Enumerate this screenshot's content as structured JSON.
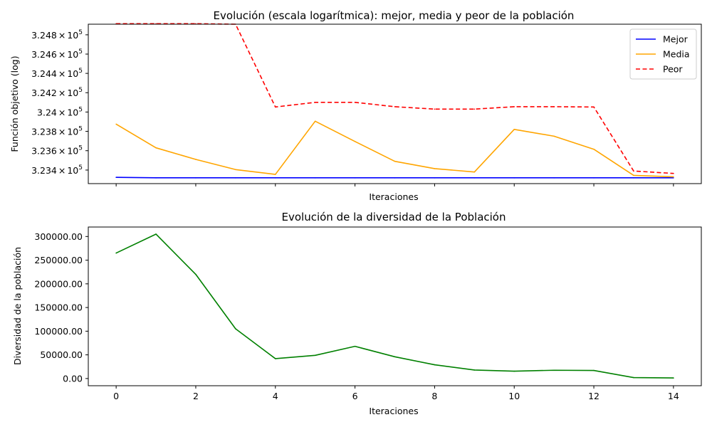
{
  "chart_data": [
    {
      "type": "line",
      "title": "Evolución (escala logarítmica): mejor, media y peor de la población",
      "xlabel": "Iteraciones",
      "ylabel": "Función objetivo (log)",
      "yscale": "log",
      "x": [
        0,
        1,
        2,
        3,
        4,
        5,
        6,
        7,
        8,
        9,
        10,
        11,
        12,
        13,
        14
      ],
      "xlim": [
        -0.7,
        14.7
      ],
      "ylim": [
        323260,
        324910
      ],
      "xticks": [
        0,
        2,
        4,
        6,
        8,
        10,
        12,
        14
      ],
      "xtick_labels_visible": false,
      "yticks": [
        {
          "value": 323400,
          "mantissa": "3.234",
          "exponent": "5"
        },
        {
          "value": 323600,
          "mantissa": "3.236",
          "exponent": "5"
        },
        {
          "value": 323800,
          "mantissa": "3.238",
          "exponent": "5"
        },
        {
          "value": 324000,
          "mantissa": "3.24",
          "exponent": "5"
        },
        {
          "value": 324200,
          "mantissa": "3.242",
          "exponent": "5"
        },
        {
          "value": 324400,
          "mantissa": "3.244",
          "exponent": "5"
        },
        {
          "value": 324600,
          "mantissa": "3.246",
          "exponent": "5"
        },
        {
          "value": 324800,
          "mantissa": "3.248",
          "exponent": "5"
        }
      ],
      "ytick_base": "10",
      "ytick_multiplier": "×",
      "grid": false,
      "legend": "top-right",
      "series": [
        {
          "name": "Mejor",
          "color": "#0000ff",
          "style": "solid",
          "values": [
            323325,
            323320,
            323320,
            323320,
            323320,
            323320,
            323320,
            323320,
            323320,
            323320,
            323320,
            323320,
            323320,
            323320,
            323320
          ]
        },
        {
          "name": "Media",
          "color": "#ffa500",
          "style": "solid",
          "values": [
            323875,
            323630,
            323510,
            323405,
            323355,
            323905,
            323695,
            323490,
            323415,
            323380,
            323820,
            323750,
            323615,
            323345,
            323330
          ]
        },
        {
          "name": "Peor",
          "color": "#ff0000",
          "style": "dashed",
          "values": [
            324915,
            324915,
            324915,
            324910,
            324052,
            324100,
            324100,
            324055,
            324030,
            324030,
            324055,
            324055,
            324052,
            323390,
            323365
          ]
        }
      ]
    },
    {
      "type": "line",
      "title": "Evolución de la diversidad de la Población",
      "xlabel": "Iteraciones",
      "ylabel": "Diversidad de la población",
      "x": [
        0,
        1,
        2,
        3,
        4,
        5,
        6,
        7,
        8,
        9,
        10,
        11,
        12,
        13,
        14
      ],
      "xlim": [
        -0.7,
        14.7
      ],
      "ylim": [
        -15200,
        320000
      ],
      "xticks": [
        0,
        2,
        4,
        6,
        8,
        10,
        12,
        14
      ],
      "xtick_labels": [
        "0",
        "2",
        "4",
        "6",
        "8",
        "10",
        "12",
        "14"
      ],
      "yticks": [
        0,
        50000,
        100000,
        150000,
        200000,
        250000,
        300000
      ],
      "ytick_labels": [
        "0.00",
        "50000.00",
        "100000.00",
        "150000.00",
        "200000.00",
        "250000.00",
        "300000.00"
      ],
      "grid": false,
      "series": [
        {
          "color": "#008000",
          "style": "solid",
          "values": [
            265000,
            305000,
            220000,
            105000,
            42000,
            49000,
            68000,
            46000,
            29000,
            18000,
            15500,
            17500,
            17000,
            2000,
            1200
          ]
        }
      ]
    }
  ]
}
